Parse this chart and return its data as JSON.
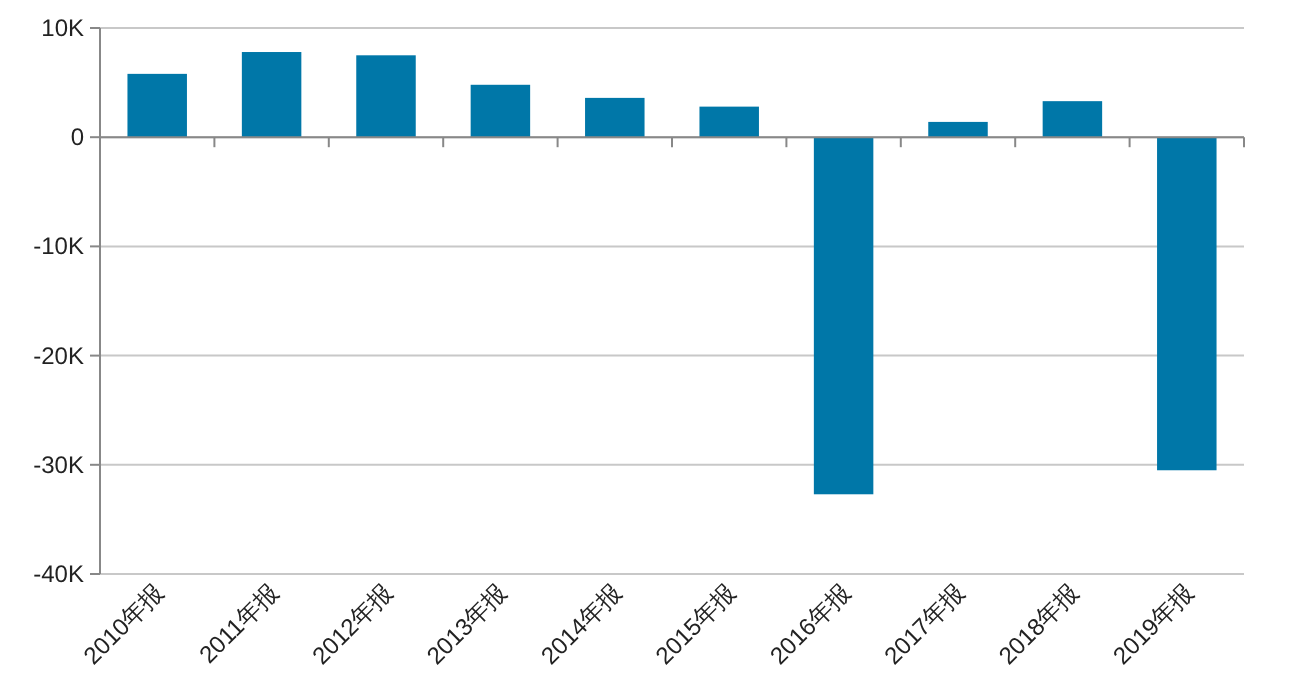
{
  "chart_data": {
    "type": "bar",
    "categories": [
      "2010年报",
      "2011年报",
      "2012年报",
      "2013年报",
      "2014年报",
      "2015年报",
      "2016年报",
      "2017年报",
      "2018年报",
      "2019年报"
    ],
    "values": [
      5800,
      7800,
      7500,
      4800,
      3600,
      2800,
      -32700,
      1400,
      3300,
      -30500
    ],
    "color": "#0077a8",
    "ylim": [
      -40000,
      10000
    ],
    "yticks": [
      {
        "value": -40000,
        "label": "-40K"
      },
      {
        "value": -30000,
        "label": "-30K"
      },
      {
        "value": -20000,
        "label": "-20K"
      },
      {
        "value": -10000,
        "label": "-10K"
      },
      0,
      {
        "value": 10000,
        "label": "10K"
      }
    ],
    "grid": "y"
  }
}
